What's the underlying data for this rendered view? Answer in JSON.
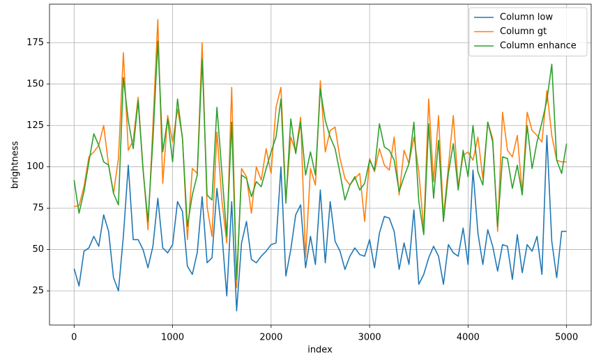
{
  "chart_data": {
    "type": "line",
    "xlabel": "index",
    "ylabel": "brightness",
    "x": [
      0,
      50,
      100,
      150,
      200,
      250,
      300,
      350,
      400,
      450,
      500,
      550,
      600,
      650,
      700,
      750,
      800,
      850,
      900,
      950,
      1000,
      1050,
      1100,
      1150,
      1200,
      1250,
      1300,
      1350,
      1400,
      1450,
      1500,
      1550,
      1600,
      1650,
      1700,
      1750,
      1800,
      1850,
      1900,
      1950,
      2000,
      2050,
      2100,
      2150,
      2200,
      2250,
      2300,
      2350,
      2400,
      2450,
      2500,
      2550,
      2600,
      2650,
      2700,
      2750,
      2800,
      2850,
      2900,
      2950,
      3000,
      3050,
      3100,
      3150,
      3200,
      3250,
      3300,
      3350,
      3400,
      3450,
      3500,
      3550,
      3600,
      3650,
      3700,
      3750,
      3800,
      3850,
      3900,
      3950,
      4000,
      4050,
      4100,
      4150,
      4200,
      4250,
      4300,
      4350,
      4400,
      4450,
      4500,
      4550,
      4600,
      4650,
      4700,
      4750,
      4800,
      4850,
      4900,
      4950,
      5000
    ],
    "series": [
      {
        "name": "Column low",
        "color": "#1f77b4",
        "values": [
          38.5,
          28,
          49,
          51,
          58,
          52,
          71,
          61,
          33,
          25,
          58,
          101,
          56,
          56,
          50,
          39,
          52,
          81,
          51,
          48,
          53,
          79,
          73,
          40,
          35,
          48,
          82,
          42,
          45,
          87,
          60,
          22,
          79,
          13,
          54,
          67,
          44,
          42,
          46,
          49,
          53,
          54,
          100,
          34,
          50,
          71,
          77,
          39,
          58,
          41,
          86,
          42,
          79,
          55,
          49,
          38,
          46,
          51,
          47,
          46,
          56,
          39,
          60,
          70,
          69,
          61,
          38,
          54,
          41,
          74,
          29,
          35,
          45,
          52,
          46,
          29,
          53,
          48,
          46,
          63,
          41,
          98,
          60,
          41,
          62,
          52,
          37,
          53,
          52,
          32,
          59,
          36,
          53,
          49,
          58,
          35,
          119,
          55,
          33,
          61,
          61
        ]
      },
      {
        "name": "Column gt",
        "color": "#ff7f0e",
        "values": [
          76,
          76.5,
          88,
          106,
          109,
          113,
          125,
          101,
          84,
          105,
          169,
          110,
          116,
          142,
          99,
          62,
          125,
          189,
          90,
          131,
          115,
          135,
          118,
          56,
          99,
          96,
          175,
          76,
          58,
          121,
          80,
          54,
          148,
          27,
          99,
          94,
          72,
          100,
          92,
          111,
          96,
          136,
          148,
          80,
          118,
          109,
          130,
          45,
          99,
          89,
          152,
          109,
          122,
          124,
          105,
          93,
          89,
          93,
          96,
          67,
          105,
          97,
          111,
          101,
          98,
          118,
          83,
          110,
          102,
          118,
          97,
          62,
          141,
          91,
          131,
          70,
          100,
          131,
          88,
          107,
          109,
          104,
          118,
          93,
          127,
          117,
          61,
          133,
          110,
          106,
          119,
          84,
          133,
          122,
          119,
          115,
          146,
          119,
          104,
          103,
          103
        ]
      },
      {
        "name": "Column enhance",
        "color": "#2ca02c",
        "values": [
          92,
          72,
          85,
          103,
          120,
          113,
          103,
          101,
          84,
          77,
          154,
          128,
          111,
          140,
          98,
          67,
          116,
          176,
          109,
          129,
          103,
          141,
          117,
          64,
          83,
          95,
          165,
          83,
          80,
          136,
          97,
          58,
          127,
          32,
          95,
          93,
          82,
          91,
          88,
          99,
          109,
          118,
          141,
          78,
          129,
          108,
          127,
          95,
          109,
          95,
          147,
          128,
          118,
          111,
          96,
          80,
          89,
          94,
          86,
          90,
          104,
          98,
          126,
          112,
          110,
          104,
          85,
          94,
          102,
          127,
          79,
          59,
          126,
          81,
          116,
          67,
          96,
          114,
          86,
          110,
          94,
          125,
          97,
          89,
          127,
          115,
          64,
          106,
          105,
          87,
          101,
          83,
          125,
          99,
          115,
          127,
          140,
          162,
          104,
          96,
          114
        ]
      }
    ],
    "xlim": [
      -250,
      5250
    ],
    "xticks": [
      0,
      1000,
      2000,
      3000,
      4000,
      5000
    ],
    "ylim": [
      4.4,
      198.3
    ],
    "yticks": [
      25,
      50,
      75,
      100,
      125,
      150,
      175
    ],
    "grid": true,
    "legend": "upper right"
  }
}
